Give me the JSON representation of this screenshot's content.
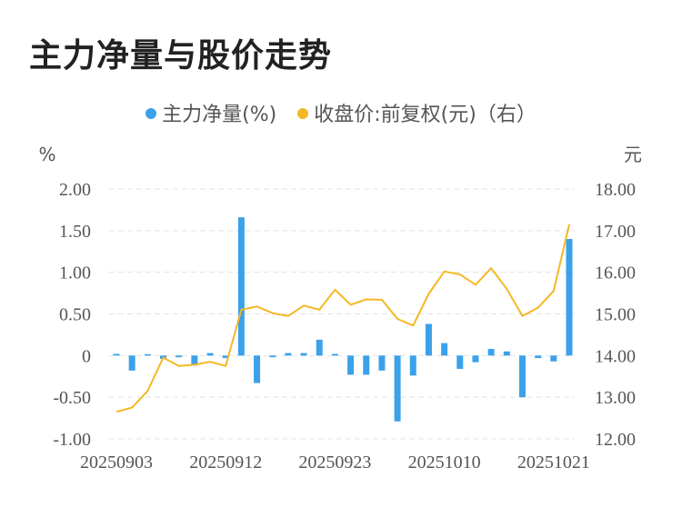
{
  "title": "主力净量与股价走势",
  "colors": {
    "bar": "#3ba1ea",
    "line": "#f4b826",
    "grid": "#e3e3e3"
  },
  "chart_data": {
    "type": "bar+line",
    "left_unit": "%",
    "right_unit": "元",
    "left_ylim": [
      -1.0,
      2.0
    ],
    "right_ylim": [
      12.0,
      18.0
    ],
    "left_ticks": [
      "2.00",
      "1.50",
      "1.00",
      "0.50",
      "0",
      "-0.50",
      "-1.00"
    ],
    "right_ticks": [
      "18.00",
      "17.00",
      "16.00",
      "15.00",
      "14.00",
      "13.00",
      "12.00"
    ],
    "x_tick_labels": [
      "20250903",
      "20250912",
      "20250923",
      "20251010",
      "20251021"
    ],
    "x_tick_indices": [
      0,
      7,
      14,
      21,
      28
    ],
    "grid": true,
    "legend_position": "top",
    "series": [
      {
        "name": "主力净量(%)",
        "type": "bar",
        "axis": "left",
        "values": [
          0.02,
          -0.18,
          0.01,
          -0.04,
          -0.02,
          -0.12,
          0.03,
          -0.03,
          1.66,
          -0.33,
          -0.02,
          0.03,
          0.03,
          0.19,
          0.02,
          -0.23,
          -0.23,
          -0.18,
          -0.79,
          -0.24,
          0.38,
          0.15,
          -0.16,
          -0.08,
          0.08,
          0.05,
          -0.5,
          -0.03,
          -0.07,
          1.4
        ]
      },
      {
        "name": "收盘价:前复权(元)（右）",
        "type": "line",
        "axis": "right",
        "values": [
          12.65,
          12.75,
          13.15,
          13.95,
          13.75,
          13.78,
          13.85,
          13.75,
          15.1,
          15.18,
          15.02,
          14.95,
          15.2,
          15.1,
          15.58,
          15.22,
          15.35,
          15.34,
          14.88,
          14.72,
          15.48,
          16.02,
          15.95,
          15.7,
          16.1,
          15.6,
          14.95,
          15.15,
          15.55,
          17.15
        ]
      }
    ]
  }
}
